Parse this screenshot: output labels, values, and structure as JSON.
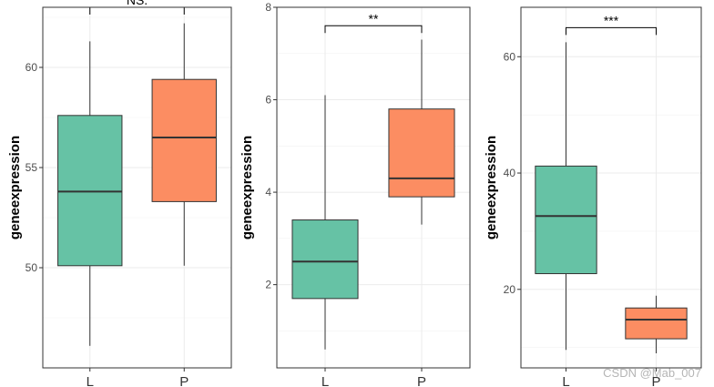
{
  "chart_data": [
    {
      "type": "box",
      "ylabel": "geneexpression",
      "ylim": [
        45,
        63
      ],
      "yticks": [
        50,
        55,
        60
      ],
      "grid": true,
      "categories": [
        "L",
        "P"
      ],
      "boxes": [
        {
          "category": "L",
          "whisker_low": 46.1,
          "q1": 50.1,
          "median": 53.8,
          "q3": 57.6,
          "whisker_high": 61.3,
          "color": "#66c2a5"
        },
        {
          "category": "P",
          "whisker_low": 50.1,
          "q1": 53.3,
          "median": 56.5,
          "q3": 59.4,
          "whisker_high": 62.2,
          "color": "#fc8d62"
        }
      ],
      "significance": {
        "label": "NS.",
        "bracket_y": 63.0
      }
    },
    {
      "type": "box",
      "ylabel": "geneexpression",
      "ylim": [
        0.2,
        8
      ],
      "yticks": [
        2,
        4,
        6,
        8
      ],
      "grid": true,
      "categories": [
        "L",
        "P"
      ],
      "boxes": [
        {
          "category": "L",
          "whisker_low": 0.6,
          "q1": 1.7,
          "median": 2.5,
          "q3": 3.4,
          "whisker_high": 6.1,
          "color": "#66c2a5"
        },
        {
          "category": "P",
          "whisker_low": 3.3,
          "q1": 3.9,
          "median": 4.3,
          "q3": 5.8,
          "whisker_high": 7.3,
          "color": "#fc8d62"
        }
      ],
      "significance": {
        "label": "**",
        "bracket_y": 7.6
      }
    },
    {
      "type": "box",
      "ylabel": "geneexpression",
      "ylim": [
        6.5,
        68.5
      ],
      "yticks": [
        20,
        40,
        60
      ],
      "grid": true,
      "categories": [
        "L",
        "P"
      ],
      "boxes": [
        {
          "category": "L",
          "whisker_low": 9.6,
          "q1": 22.7,
          "median": 32.6,
          "q3": 41.2,
          "whisker_high": 62.5,
          "color": "#66c2a5"
        },
        {
          "category": "P",
          "whisker_low": 9.0,
          "q1": 11.5,
          "median": 14.8,
          "q3": 16.8,
          "whisker_high": 18.9,
          "color": "#fc8d62"
        }
      ],
      "significance": {
        "label": "***",
        "bracket_y": 65.0
      }
    }
  ],
  "watermark": "CSDN @Mab_007"
}
